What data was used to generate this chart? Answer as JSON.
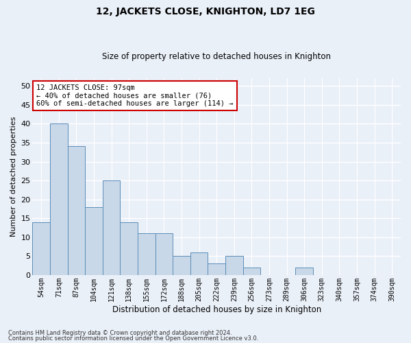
{
  "title": "12, JACKETS CLOSE, KNIGHTON, LD7 1EG",
  "subtitle": "Size of property relative to detached houses in Knighton",
  "xlabel": "Distribution of detached houses by size in Knighton",
  "ylabel": "Number of detached properties",
  "categories": [
    "54sqm",
    "71sqm",
    "87sqm",
    "104sqm",
    "121sqm",
    "138sqm",
    "155sqm",
    "172sqm",
    "188sqm",
    "205sqm",
    "222sqm",
    "239sqm",
    "256sqm",
    "273sqm",
    "289sqm",
    "306sqm",
    "323sqm",
    "340sqm",
    "357sqm",
    "374sqm",
    "390sqm"
  ],
  "values": [
    14,
    40,
    34,
    18,
    25,
    14,
    11,
    11,
    5,
    6,
    3,
    5,
    2,
    0,
    0,
    2,
    0,
    0,
    0,
    0,
    0
  ],
  "bar_color": "#c8d8e8",
  "bar_edge_color": "#5b8db8",
  "annotation_title": "12 JACKETS CLOSE: 97sqm",
  "annotation_line1": "← 40% of detached houses are smaller (76)",
  "annotation_line2": "60% of semi-detached houses are larger (114) →",
  "annotation_box_color": "#cc0000",
  "ylim": [
    0,
    52
  ],
  "yticks": [
    0,
    5,
    10,
    15,
    20,
    25,
    30,
    35,
    40,
    45,
    50
  ],
  "background_color": "#eaf0f8",
  "plot_background": "#eaf0f8",
  "grid_color": "#ffffff",
  "footer_line1": "Contains HM Land Registry data © Crown copyright and database right 2024.",
  "footer_line2": "Contains public sector information licensed under the Open Government Licence v3.0."
}
